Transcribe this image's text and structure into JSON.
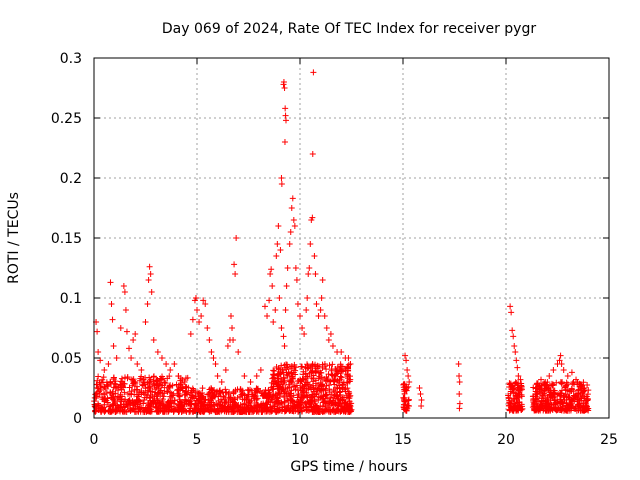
{
  "chart_data": {
    "type": "scatter",
    "title": "Day 069 of 2024, Rate Of TEC Index for receiver pygr",
    "xlabel": "GPS time / hours",
    "ylabel": "ROTI / TECUs",
    "xlim": [
      0,
      25
    ],
    "ylim": [
      0,
      0.3
    ],
    "x_ticks": [
      0,
      5,
      10,
      15,
      20,
      25
    ],
    "x_tick_labels": [
      "0",
      "5",
      "10",
      "15",
      "20",
      "25"
    ],
    "y_ticks": [
      0,
      0.05,
      0.1,
      0.15,
      0.2,
      0.25,
      0.3
    ],
    "y_tick_labels": [
      "0",
      "0.05",
      "0.1",
      "0.15",
      "0.2",
      "0.25",
      "0.3"
    ],
    "grid": true,
    "marker": "+",
    "color": "#ff0000",
    "dense_bands": [
      {
        "x_start": 0.0,
        "x_end": 4.6,
        "y_low": 0.005,
        "y_high": 0.035,
        "count": 520
      },
      {
        "x_start": 4.6,
        "x_end": 8.6,
        "y_low": 0.005,
        "y_high": 0.025,
        "count": 420
      },
      {
        "x_start": 8.6,
        "x_end": 12.5,
        "y_low": 0.005,
        "y_high": 0.045,
        "count": 620
      },
      {
        "x_start": 15.0,
        "x_end": 15.3,
        "y_low": 0.006,
        "y_high": 0.03,
        "count": 40
      },
      {
        "x_start": 20.1,
        "x_end": 20.8,
        "y_low": 0.006,
        "y_high": 0.03,
        "count": 110
      },
      {
        "x_start": 21.3,
        "x_end": 24.0,
        "y_low": 0.006,
        "y_high": 0.03,
        "count": 360
      }
    ],
    "points": [
      [
        0.1,
        0.08
      ],
      [
        0.15,
        0.072
      ],
      [
        0.2,
        0.055
      ],
      [
        0.3,
        0.048
      ],
      [
        0.5,
        0.04
      ],
      [
        0.7,
        0.045
      ],
      [
        0.8,
        0.113
      ],
      [
        0.85,
        0.095
      ],
      [
        0.9,
        0.082
      ],
      [
        0.95,
        0.06
      ],
      [
        1.1,
        0.05
      ],
      [
        1.3,
        0.075
      ],
      [
        1.45,
        0.11
      ],
      [
        1.5,
        0.105
      ],
      [
        1.55,
        0.09
      ],
      [
        1.6,
        0.072
      ],
      [
        1.7,
        0.058
      ],
      [
        1.8,
        0.05
      ],
      [
        1.9,
        0.065
      ],
      [
        2.0,
        0.07
      ],
      [
        2.1,
        0.045
      ],
      [
        2.3,
        0.04
      ],
      [
        2.5,
        0.08
      ],
      [
        2.6,
        0.095
      ],
      [
        2.65,
        0.115
      ],
      [
        2.7,
        0.126
      ],
      [
        2.75,
        0.12
      ],
      [
        2.8,
        0.105
      ],
      [
        2.9,
        0.065
      ],
      [
        3.1,
        0.055
      ],
      [
        3.3,
        0.05
      ],
      [
        3.5,
        0.045
      ],
      [
        3.7,
        0.04
      ],
      [
        3.9,
        0.045
      ],
      [
        4.1,
        0.035
      ],
      [
        4.4,
        0.03
      ],
      [
        4.7,
        0.07
      ],
      [
        4.8,
        0.082
      ],
      [
        4.9,
        0.098
      ],
      [
        4.95,
        0.1
      ],
      [
        5.0,
        0.09
      ],
      [
        5.1,
        0.08
      ],
      [
        5.2,
        0.085
      ],
      [
        5.3,
        0.098
      ],
      [
        5.4,
        0.095
      ],
      [
        5.5,
        0.075
      ],
      [
        5.6,
        0.065
      ],
      [
        5.7,
        0.055
      ],
      [
        5.8,
        0.05
      ],
      [
        5.9,
        0.045
      ],
      [
        6.0,
        0.035
      ],
      [
        6.2,
        0.03
      ],
      [
        6.4,
        0.04
      ],
      [
        6.5,
        0.06
      ],
      [
        6.6,
        0.065
      ],
      [
        6.65,
        0.085
      ],
      [
        6.7,
        0.075
      ],
      [
        6.75,
        0.065
      ],
      [
        6.8,
        0.128
      ],
      [
        6.85,
        0.12
      ],
      [
        6.9,
        0.15
      ],
      [
        7.0,
        0.055
      ],
      [
        7.3,
        0.035
      ],
      [
        7.6,
        0.03
      ],
      [
        7.9,
        0.035
      ],
      [
        8.1,
        0.04
      ],
      [
        8.3,
        0.093
      ],
      [
        8.4,
        0.085
      ],
      [
        8.5,
        0.098
      ],
      [
        8.55,
        0.12
      ],
      [
        8.6,
        0.124
      ],
      [
        8.65,
        0.11
      ],
      [
        8.7,
        0.08
      ],
      [
        8.8,
        0.09
      ],
      [
        8.85,
        0.135
      ],
      [
        8.9,
        0.145
      ],
      [
        8.95,
        0.16
      ],
      [
        9.0,
        0.1
      ],
      [
        9.05,
        0.14
      ],
      [
        9.1,
        0.075
      ],
      [
        9.2,
        0.068
      ],
      [
        9.25,
        0.06
      ],
      [
        9.3,
        0.09
      ],
      [
        9.35,
        0.11
      ],
      [
        9.4,
        0.125
      ],
      [
        9.5,
        0.145
      ],
      [
        9.55,
        0.155
      ],
      [
        9.6,
        0.175
      ],
      [
        9.65,
        0.183
      ],
      [
        9.7,
        0.165
      ],
      [
        9.75,
        0.16
      ],
      [
        9.8,
        0.125
      ],
      [
        9.85,
        0.115
      ],
      [
        9.9,
        0.095
      ],
      [
        10.0,
        0.085
      ],
      [
        10.1,
        0.075
      ],
      [
        10.2,
        0.07
      ],
      [
        10.3,
        0.09
      ],
      [
        10.35,
        0.1
      ],
      [
        10.4,
        0.12
      ],
      [
        10.45,
        0.125
      ],
      [
        10.5,
        0.145
      ],
      [
        10.55,
        0.165
      ],
      [
        10.6,
        0.167
      ],
      [
        10.62,
        0.22
      ],
      [
        10.65,
        0.288
      ],
      [
        10.7,
        0.135
      ],
      [
        10.75,
        0.12
      ],
      [
        10.8,
        0.095
      ],
      [
        10.9,
        0.085
      ],
      [
        11.0,
        0.09
      ],
      [
        11.05,
        0.1
      ],
      [
        11.1,
        0.115
      ],
      [
        11.2,
        0.085
      ],
      [
        11.3,
        0.075
      ],
      [
        11.4,
        0.065
      ],
      [
        11.5,
        0.07
      ],
      [
        11.6,
        0.06
      ],
      [
        11.8,
        0.055
      ],
      [
        12.0,
        0.055
      ],
      [
        12.2,
        0.05
      ],
      [
        12.35,
        0.05
      ],
      [
        12.45,
        0.045
      ],
      [
        9.2,
        0.278
      ],
      [
        9.22,
        0.28
      ],
      [
        9.25,
        0.275
      ],
      [
        9.28,
        0.258
      ],
      [
        9.3,
        0.252
      ],
      [
        9.32,
        0.248
      ],
      [
        9.27,
        0.23
      ],
      [
        9.1,
        0.2
      ],
      [
        9.12,
        0.195
      ],
      [
        15.1,
        0.052
      ],
      [
        15.15,
        0.048
      ],
      [
        15.2,
        0.04
      ],
      [
        15.25,
        0.035
      ],
      [
        15.3,
        0.03
      ],
      [
        15.8,
        0.025
      ],
      [
        15.85,
        0.02
      ],
      [
        15.9,
        0.015
      ],
      [
        15.88,
        0.01
      ],
      [
        17.7,
        0.045
      ],
      [
        17.72,
        0.035
      ],
      [
        17.75,
        0.03
      ],
      [
        17.73,
        0.02
      ],
      [
        17.76,
        0.012
      ],
      [
        17.74,
        0.008
      ],
      [
        20.2,
        0.093
      ],
      [
        20.25,
        0.088
      ],
      [
        20.3,
        0.073
      ],
      [
        20.35,
        0.068
      ],
      [
        20.4,
        0.06
      ],
      [
        20.45,
        0.055
      ],
      [
        20.5,
        0.048
      ],
      [
        20.55,
        0.042
      ],
      [
        20.6,
        0.035
      ],
      [
        20.7,
        0.032
      ],
      [
        21.5,
        0.028
      ],
      [
        21.7,
        0.032
      ],
      [
        21.9,
        0.03
      ],
      [
        22.1,
        0.035
      ],
      [
        22.3,
        0.04
      ],
      [
        22.5,
        0.045
      ],
      [
        22.6,
        0.048
      ],
      [
        22.65,
        0.052
      ],
      [
        22.7,
        0.045
      ],
      [
        22.8,
        0.04
      ],
      [
        23.0,
        0.035
      ],
      [
        23.2,
        0.038
      ],
      [
        23.4,
        0.032
      ],
      [
        23.6,
        0.028
      ],
      [
        23.8,
        0.025
      ]
    ]
  }
}
